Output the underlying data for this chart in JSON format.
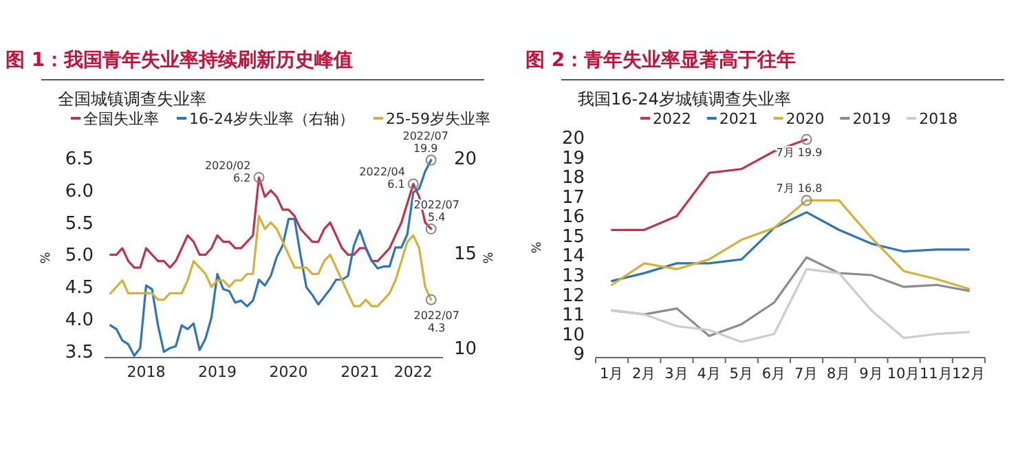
{
  "chart_data": [
    {
      "type": "line",
      "title": "图 1：我国青年失业率持续刷新历史峰值",
      "subtitle": "全国城镇调查失业率",
      "ylabel": "%",
      "y2label": "%",
      "legend": "top",
      "x": [
        "2018-01",
        "2018-02",
        "2018-03",
        "2018-04",
        "2018-05",
        "2018-06",
        "2018-07",
        "2018-08",
        "2018-09",
        "2018-10",
        "2018-11",
        "2018-12",
        "2019-01",
        "2019-02",
        "2019-03",
        "2019-04",
        "2019-05",
        "2019-06",
        "2019-07",
        "2019-08",
        "2019-09",
        "2019-10",
        "2019-11",
        "2019-12",
        "2020-01",
        "2020-02",
        "2020-03",
        "2020-04",
        "2020-05",
        "2020-06",
        "2020-07",
        "2020-08",
        "2020-09",
        "2020-10",
        "2020-11",
        "2020-12",
        "2021-01",
        "2021-02",
        "2021-03",
        "2021-04",
        "2021-05",
        "2021-06",
        "2021-07",
        "2021-08",
        "2021-09",
        "2021-10",
        "2021-11",
        "2021-12",
        "2022-01",
        "2022-02",
        "2022-03",
        "2022-04",
        "2022-05",
        "2022-06",
        "2022-07"
      ],
      "xlim": [
        "2017-12",
        "2022-09"
      ],
      "xticks": [
        {
          "value": "2018-07",
          "label": "2018"
        },
        {
          "value": "2019-07",
          "label": "2019"
        },
        {
          "value": "2020-07",
          "label": "2020"
        },
        {
          "value": "2021-07",
          "label": "2021"
        },
        {
          "value": "2022-04",
          "label": "2022"
        }
      ],
      "ylim": [
        3.4,
        6.5
      ],
      "yticks": [
        3.5,
        {
          "value": 4,
          "label": "4.0"
        },
        4.5,
        {
          "value": 5,
          "label": "5.0"
        },
        5.5,
        {
          "value": 6,
          "label": "6.0"
        },
        6.5
      ],
      "y2lim": [
        9.5,
        20
      ],
      "y2ticks": [
        10,
        15,
        20
      ],
      "series": [
        {
          "name": "全国失业率",
          "color": "#c0334d",
          "values": [
            5.0,
            5.0,
            5.1,
            4.9,
            4.8,
            4.8,
            5.1,
            5.0,
            4.9,
            4.9,
            4.8,
            4.9,
            5.1,
            5.3,
            5.2,
            5.0,
            5.0,
            5.1,
            5.3,
            5.2,
            5.2,
            5.1,
            5.1,
            5.2,
            5.3,
            6.2,
            5.9,
            6.0,
            5.9,
            5.7,
            5.7,
            5.6,
            5.4,
            5.3,
            5.2,
            5.2,
            5.4,
            5.5,
            5.3,
            5.1,
            5.0,
            5.0,
            5.1,
            5.1,
            4.9,
            4.9,
            5.0,
            5.1,
            5.3,
            5.5,
            5.8,
            6.1,
            5.9,
            5.5,
            5.4
          ]
        },
        {
          "name": "16-24岁失业率（右轴）",
          "color": "#2e75b6",
          "axis": "y2",
          "values": [
            11.2,
            11.0,
            10.4,
            10.2,
            9.6,
            10.0,
            13.3,
            13.1,
            11.2,
            9.8,
            10.0,
            10.1,
            11.2,
            11.0,
            11.3,
            9.9,
            10.5,
            11.6,
            13.9,
            13.1,
            13.0,
            12.4,
            12.5,
            12.2,
            12.5,
            13.6,
            13.3,
            13.8,
            14.8,
            15.4,
            16.8,
            16.8,
            14.9,
            13.2,
            12.8,
            12.3,
            12.7,
            13.1,
            13.6,
            13.6,
            13.8,
            15.4,
            16.2,
            15.3,
            14.6,
            14.2,
            14.3,
            14.3,
            15.3,
            15.3,
            16.0,
            18.2,
            18.4,
            19.3,
            19.9
          ]
        },
        {
          "name": "25-59岁失业率",
          "color": "#d4b13a",
          "values": [
            4.4,
            4.5,
            4.6,
            4.4,
            4.4,
            4.4,
            4.4,
            4.4,
            4.3,
            4.3,
            4.4,
            4.4,
            4.4,
            4.6,
            4.9,
            4.8,
            4.7,
            4.5,
            4.6,
            4.6,
            4.5,
            4.6,
            4.6,
            4.7,
            4.7,
            5.6,
            5.4,
            5.5,
            5.4,
            5.2,
            5.0,
            4.8,
            4.8,
            4.8,
            4.7,
            4.7,
            4.9,
            5.0,
            4.8,
            4.6,
            4.4,
            4.2,
            4.2,
            4.3,
            4.2,
            4.2,
            4.3,
            4.4,
            4.6,
            4.9,
            5.2,
            5.3,
            5.1,
            4.5,
            4.3
          ]
        }
      ],
      "annotations": [
        {
          "text": "2020/02\n6.2",
          "x": "2020-02",
          "y": 6.2
        },
        {
          "text": "2022/04\n6.1",
          "x": "2022-04",
          "y": 6.1
        },
        "2022/07\n19.9",
        {
          "text": "2022/07\n5.4",
          "x": "2022-07",
          "y": 5.4
        },
        {
          "text": "2022/07\n4.3",
          "x": "2022-07",
          "y": 4.3
        }
      ]
    },
    {
      "type": "line",
      "title": "图 2：青年失业率显著高于往年",
      "subtitle": "我国16-24岁城镇调查失业率",
      "ylabel": "%",
      "legend": "top",
      "categories": [
        "1月",
        "2月",
        "3月",
        "4月",
        "5月",
        "6月",
        "7月",
        "8月",
        "9月",
        "10月",
        "11月",
        "12月"
      ],
      "ylim": [
        8.8,
        20
      ],
      "yticks": [
        9,
        10,
        11,
        12,
        13,
        14,
        15,
        16,
        17,
        18,
        19,
        20
      ],
      "series": [
        {
          "name": "2022",
          "color": "#c0334d",
          "values": [
            15.3,
            15.3,
            16.0,
            18.2,
            18.4,
            19.3,
            19.9,
            null,
            null,
            null,
            null,
            null
          ]
        },
        {
          "name": "2021",
          "color": "#2e75b6",
          "values": [
            12.7,
            13.1,
            13.6,
            13.6,
            13.8,
            15.4,
            16.2,
            15.3,
            14.6,
            14.2,
            14.3,
            14.3
          ]
        },
        {
          "name": "2020",
          "color": "#d4b13a",
          "values": [
            12.5,
            13.6,
            13.3,
            13.8,
            14.8,
            15.4,
            16.8,
            16.8,
            14.9,
            13.2,
            12.8,
            12.3
          ]
        },
        {
          "name": "2019",
          "color": "#8c8c8c",
          "values": [
            11.2,
            11.0,
            11.3,
            9.9,
            10.5,
            11.6,
            13.9,
            13.1,
            13.0,
            12.4,
            12.5,
            12.2
          ]
        },
        {
          "name": "2018",
          "color": "#cccccc",
          "values": [
            11.2,
            11.0,
            10.4,
            10.2,
            9.6,
            10.0,
            13.3,
            13.1,
            11.2,
            9.8,
            10.0,
            10.1
          ]
        }
      ],
      "annotations": [
        {
          "text": "7月 19.9",
          "x": "7月",
          "y": 19.9
        },
        {
          "text": "7月 16.8",
          "x": "7月",
          "y": 16.8
        }
      ]
    }
  ]
}
